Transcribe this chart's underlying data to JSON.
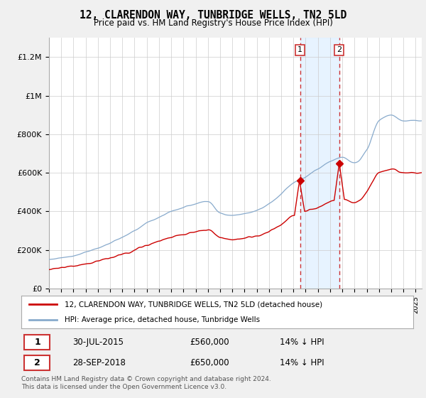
{
  "title": "12, CLARENDON WAY, TUNBRIDGE WELLS, TN2 5LD",
  "subtitle": "Price paid vs. HM Land Registry's House Price Index (HPI)",
  "ylabel_ticks": [
    "£0",
    "£200K",
    "£400K",
    "£600K",
    "£800K",
    "£1M",
    "£1.2M"
  ],
  "ytick_values": [
    0,
    200000,
    400000,
    600000,
    800000,
    1000000,
    1200000
  ],
  "ylim": [
    0,
    1300000
  ],
  "x_start_year": 1995,
  "x_end_year": 2025,
  "transaction1_year": 2015.54,
  "transaction1_price": 560000,
  "transaction1_date": "30-JUL-2015",
  "transaction1_hpi_diff": "14% ↓ HPI",
  "transaction2_year": 2018.75,
  "transaction2_price": 650000,
  "transaction2_date": "28-SEP-2018",
  "transaction2_hpi_diff": "14% ↓ HPI",
  "line_color_property": "#cc0000",
  "line_color_hpi": "#88aacc",
  "vline_color": "#cc3333",
  "shade_color": "#ddeeff",
  "legend_label_property": "12, CLARENDON WAY, TUNBRIDGE WELLS, TN2 5LD (detached house)",
  "legend_label_hpi": "HPI: Average price, detached house, Tunbridge Wells",
  "footer": "Contains HM Land Registry data © Crown copyright and database right 2024.\nThis data is licensed under the Open Government Licence v3.0.",
  "bg_color": "#f0f0f0",
  "plot_bg_color": "#ffffff"
}
